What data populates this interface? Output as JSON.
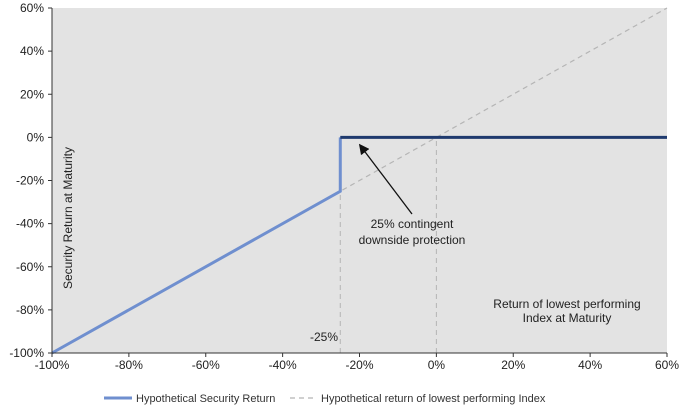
{
  "chart_data": {
    "type": "line",
    "xlabel": "Return of lowest performing Index at Maturity",
    "xlabel_lines": [
      "Return of lowest performing",
      "Index at Maturity"
    ],
    "ylabel": "Security Return at Maturity",
    "xlim": [
      -100,
      60
    ],
    "ylim": [
      -100,
      60
    ],
    "x_ticks": [
      -100,
      -80,
      -60,
      -40,
      -20,
      0,
      20,
      40,
      60
    ],
    "y_ticks": [
      -100,
      -80,
      -60,
      -40,
      -20,
      0,
      20,
      40,
      60
    ],
    "x_tick_labels": [
      "-100%",
      "-80%",
      "-60%",
      "-40%",
      "-20%",
      "0%",
      "20%",
      "40%",
      "60%"
    ],
    "y_tick_labels": [
      "-100%",
      "-80%",
      "-60%",
      "-40%",
      "-20%",
      "0%",
      "20%",
      "40%",
      "60%"
    ],
    "series": [
      {
        "name": "Hypothetical Security Return",
        "style": "solid",
        "color": "#6f8fcf",
        "points": [
          [
            -100,
            -100
          ],
          [
            -25,
            -25
          ],
          [
            -25,
            0
          ]
        ]
      },
      {
        "name": "Hypothetical Security Return",
        "style": "solid",
        "color": "#1f3a6e",
        "points": [
          [
            -25,
            0
          ],
          [
            60,
            0
          ]
        ]
      },
      {
        "name": "Hypothetical return of lowest performing Index",
        "style": "dashed",
        "color": "#b5b5b5",
        "points": [
          [
            -100,
            -100
          ],
          [
            60,
            60
          ]
        ]
      }
    ],
    "reference_lines": [
      {
        "x": -25,
        "y_from": -100,
        "y_to": -25
      },
      {
        "x": 0,
        "y_from": -100,
        "y_to": 0
      }
    ],
    "annotations": {
      "threshold_label": "-25%",
      "protection_lines": [
        "25% contingent",
        "downside protection"
      ],
      "arrow_target": [
        -20,
        -3
      ]
    },
    "legend": {
      "position": "bottom",
      "items": [
        {
          "label": "Hypothetical Security Return",
          "style": "solid",
          "color": "#6f8fcf"
        },
        {
          "label": "Hypothetical return of lowest performing Index",
          "style": "dashed",
          "color": "#b5b5b5"
        }
      ]
    },
    "colors": {
      "plot_background": "#e3e3e3",
      "axis": "#333333",
      "zero_line": "#1a1a1a"
    }
  }
}
